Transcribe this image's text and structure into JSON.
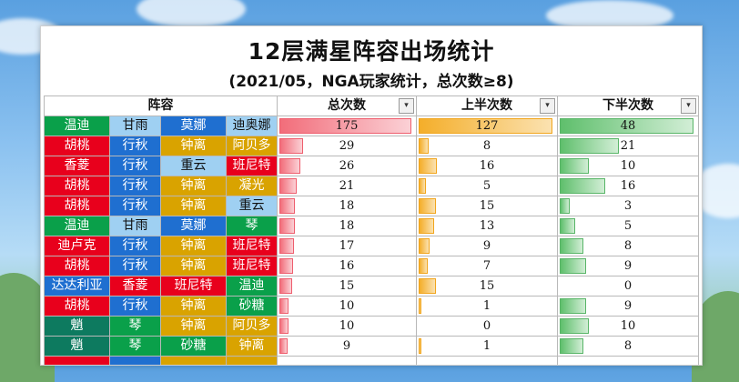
{
  "title": "12层满星阵容出场统计",
  "subtitle": "(2021/05，NGA玩家统计，总次数≥8)",
  "headers": {
    "lineup": "阵容",
    "total": "总次数",
    "first_half": "上半次数",
    "second_half": "下半次数",
    "filter_glyph": "▾"
  },
  "colors": {
    "red": "#e8001c",
    "blue": "#1f6fd0",
    "green": "#0aa04a",
    "gold": "#d9a300",
    "lblue": "#9fd0f2",
    "teal": "#0d7a5f",
    "bar_total": "#f26d7a",
    "bar_first": "#f4ae2a",
    "bar_second": "#5fbf6c"
  },
  "bar_max": {
    "total": 175,
    "first_half": 127,
    "second_half": 48
  },
  "rows": [
    {
      "chars": [
        [
          "温迪",
          "green"
        ],
        [
          "甘雨",
          "lblue"
        ],
        [
          "莫娜",
          "blue"
        ],
        [
          "迪奥娜",
          "lblue"
        ]
      ],
      "total": 175,
      "first_half": 127,
      "second_half": 48
    },
    {
      "chars": [
        [
          "胡桃",
          "red"
        ],
        [
          "行秋",
          "blue"
        ],
        [
          "钟离",
          "gold"
        ],
        [
          "阿贝多",
          "gold"
        ]
      ],
      "total": 29,
      "first_half": 8,
      "second_half": 21
    },
    {
      "chars": [
        [
          "香菱",
          "red"
        ],
        [
          "行秋",
          "blue"
        ],
        [
          "重云",
          "lblue"
        ],
        [
          "班尼特",
          "red"
        ]
      ],
      "total": 26,
      "first_half": 16,
      "second_half": 10
    },
    {
      "chars": [
        [
          "胡桃",
          "red"
        ],
        [
          "行秋",
          "blue"
        ],
        [
          "钟离",
          "gold"
        ],
        [
          "凝光",
          "gold"
        ]
      ],
      "total": 21,
      "first_half": 5,
      "second_half": 16
    },
    {
      "chars": [
        [
          "胡桃",
          "red"
        ],
        [
          "行秋",
          "blue"
        ],
        [
          "钟离",
          "gold"
        ],
        [
          "重云",
          "lblue"
        ]
      ],
      "total": 18,
      "first_half": 15,
      "second_half": 3
    },
    {
      "chars": [
        [
          "温迪",
          "green"
        ],
        [
          "甘雨",
          "lblue"
        ],
        [
          "莫娜",
          "blue"
        ],
        [
          "琴",
          "green"
        ]
      ],
      "total": 18,
      "first_half": 13,
      "second_half": 5
    },
    {
      "chars": [
        [
          "迪卢克",
          "red"
        ],
        [
          "行秋",
          "blue"
        ],
        [
          "钟离",
          "gold"
        ],
        [
          "班尼特",
          "red"
        ]
      ],
      "total": 17,
      "first_half": 9,
      "second_half": 8
    },
    {
      "chars": [
        [
          "胡桃",
          "red"
        ],
        [
          "行秋",
          "blue"
        ],
        [
          "钟离",
          "gold"
        ],
        [
          "班尼特",
          "red"
        ]
      ],
      "total": 16,
      "first_half": 7,
      "second_half": 9
    },
    {
      "chars": [
        [
          "达达利亚",
          "blue"
        ],
        [
          "香菱",
          "red"
        ],
        [
          "班尼特",
          "red"
        ],
        [
          "温迪",
          "green"
        ]
      ],
      "total": 15,
      "first_half": 15,
      "second_half": 0
    },
    {
      "chars": [
        [
          "胡桃",
          "red"
        ],
        [
          "行秋",
          "blue"
        ],
        [
          "钟离",
          "gold"
        ],
        [
          "砂糖",
          "green"
        ]
      ],
      "total": 10,
      "first_half": 1,
      "second_half": 9
    },
    {
      "chars": [
        [
          "魈",
          "teal"
        ],
        [
          "琴",
          "green"
        ],
        [
          "钟离",
          "gold"
        ],
        [
          "阿贝多",
          "gold"
        ]
      ],
      "total": 10,
      "first_half": 0,
      "second_half": 10
    },
    {
      "chars": [
        [
          "魈",
          "teal"
        ],
        [
          "琴",
          "green"
        ],
        [
          "砂糖",
          "green"
        ],
        [
          "钟离",
          "gold"
        ]
      ],
      "total": 9,
      "first_half": 1,
      "second_half": 8
    },
    {
      "chars": [
        [
          "",
          "red"
        ],
        [
          "",
          "blue"
        ],
        [
          "",
          "gold"
        ],
        [
          "",
          "gold"
        ]
      ],
      "total": null,
      "first_half": null,
      "second_half": null
    }
  ]
}
